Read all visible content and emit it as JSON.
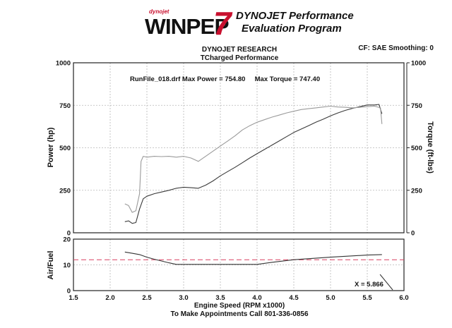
{
  "header": {
    "logo_brand": "dynojet",
    "logo_word": "WINPEP",
    "logo_number": "7",
    "title_line1": "DYNOJET Performance",
    "title_line2": "Evaluation Program"
  },
  "chart_info": {
    "company": "DYNOJET RESEARCH",
    "customer": "TCharged Performance",
    "settings": "CF: SAE  Smoothing: 0",
    "annotation": "RunFile_018.drf Max Power = 754.80     Max Torque = 747.40",
    "cursor_readout": "X = 5.866",
    "footer": "To Make Appointments Call 801-336-0856"
  },
  "chart_data": [
    {
      "type": "line",
      "xlabel": "Engine Speed (RPM x1000)",
      "ylabel": "Power (hp)",
      "y2label": "Torque (ft-lbs)",
      "xlim": [
        1.5,
        6.0
      ],
      "ylim": [
        0,
        1000
      ],
      "y2lim": [
        0,
        1000
      ],
      "xticks": [
        "1.5",
        "2.0",
        "2.5",
        "3.0",
        "3.5",
        "4.0",
        "4.5",
        "5.0",
        "5.5",
        "6.0"
      ],
      "yticks": [
        "0",
        "250",
        "500",
        "750",
        "1000"
      ],
      "y2ticks": [
        "0",
        "250",
        "500",
        "750",
        "1000"
      ],
      "grid": true,
      "max_power": 754.8,
      "max_torque": 747.4,
      "series": [
        {
          "color": "#3a3a3a",
          "x": [
            2.2,
            2.25,
            2.3,
            2.35,
            2.4,
            2.45,
            2.5,
            2.6,
            2.7,
            2.8,
            2.9,
            3.0,
            3.1,
            3.2,
            3.3,
            3.4,
            3.5,
            3.6,
            3.7,
            3.8,
            3.9,
            4.0,
            4.1,
            4.2,
            4.3,
            4.4,
            4.5,
            4.6,
            4.7,
            4.8,
            4.9,
            5.0,
            5.1,
            5.2,
            5.3,
            5.4,
            5.5,
            5.6,
            5.66,
            5.7
          ],
          "y": [
            65,
            70,
            55,
            60,
            140,
            200,
            215,
            230,
            240,
            250,
            262,
            268,
            265,
            262,
            280,
            305,
            335,
            360,
            385,
            412,
            440,
            465,
            490,
            515,
            540,
            565,
            590,
            610,
            630,
            650,
            668,
            688,
            705,
            720,
            732,
            742,
            752,
            752,
            755,
            700
          ]
        },
        {
          "color": "#9a9a9a",
          "x": [
            2.2,
            2.25,
            2.3,
            2.35,
            2.4,
            2.42,
            2.45,
            2.5,
            2.6,
            2.7,
            2.8,
            2.9,
            3.0,
            3.1,
            3.2,
            3.3,
            3.4,
            3.5,
            3.6,
            3.7,
            3.8,
            3.9,
            4.0,
            4.1,
            4.2,
            4.3,
            4.4,
            4.5,
            4.6,
            4.7,
            4.8,
            4.9,
            5.0,
            5.1,
            5.2,
            5.3,
            5.4,
            5.5,
            5.6,
            5.68,
            5.7
          ],
          "y": [
            170,
            160,
            120,
            130,
            230,
            420,
            450,
            445,
            450,
            448,
            450,
            445,
            450,
            440,
            420,
            450,
            480,
            510,
            540,
            570,
            605,
            630,
            650,
            665,
            680,
            692,
            705,
            715,
            725,
            730,
            735,
            740,
            745,
            740,
            738,
            735,
            738,
            742,
            745,
            735,
            640
          ]
        }
      ]
    },
    {
      "type": "line",
      "xlabel": "Engine Speed (RPM x1000)",
      "ylabel": "Air/Fuel",
      "xlim": [
        1.5,
        6.0
      ],
      "ylim": [
        0,
        20
      ],
      "xticks": [
        "1.5",
        "2.0",
        "2.5",
        "3.0",
        "3.5",
        "4.0",
        "4.5",
        "5.0",
        "5.5",
        "6.0"
      ],
      "yticks": [
        "0",
        "10",
        "20"
      ],
      "grid": true,
      "reference_line": {
        "y": 12,
        "color": "#d94060"
      },
      "series": [
        {
          "color": "#333333",
          "x": [
            2.2,
            2.3,
            2.4,
            2.5,
            2.6,
            2.7,
            2.8,
            2.9,
            3.0,
            3.5,
            4.0,
            4.2,
            4.5,
            5.0,
            5.5,
            5.7
          ],
          "y": [
            15,
            14.5,
            14,
            13,
            12.2,
            11.5,
            10.8,
            10.2,
            10.2,
            10.2,
            10.2,
            11,
            12,
            13,
            13.8,
            14
          ]
        }
      ]
    }
  ]
}
